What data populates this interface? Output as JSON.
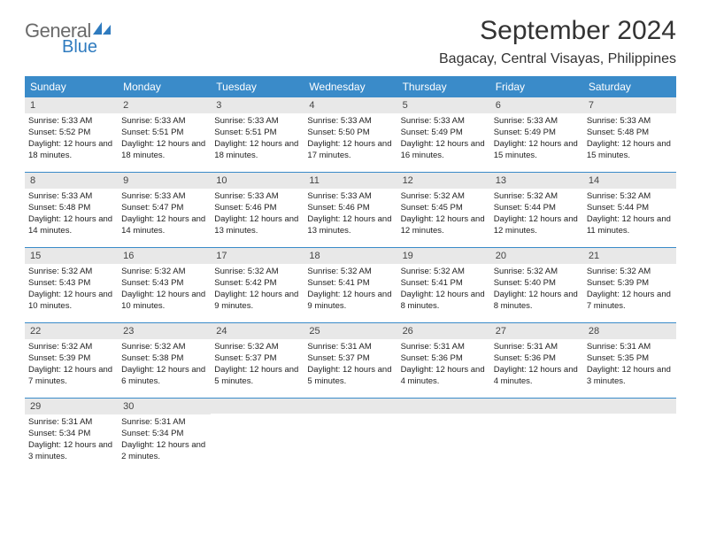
{
  "logo": {
    "text_top": "General",
    "text_bottom": "Blue",
    "gray": "#6a6a6a",
    "blue": "#2f7bbf"
  },
  "title": "September 2024",
  "location": "Bagacay, Central Visayas, Philippines",
  "colors": {
    "header_bg": "#3a8bc9",
    "header_text": "#ffffff",
    "daynum_bg": "#e8e8e8",
    "border": "#3a8bc9",
    "text": "#222222"
  },
  "day_names": [
    "Sunday",
    "Monday",
    "Tuesday",
    "Wednesday",
    "Thursday",
    "Friday",
    "Saturday"
  ],
  "weeks": [
    [
      {
        "n": "1",
        "sr": "5:33 AM",
        "ss": "5:52 PM",
        "dl": "12 hours and 18 minutes."
      },
      {
        "n": "2",
        "sr": "5:33 AM",
        "ss": "5:51 PM",
        "dl": "12 hours and 18 minutes."
      },
      {
        "n": "3",
        "sr": "5:33 AM",
        "ss": "5:51 PM",
        "dl": "12 hours and 18 minutes."
      },
      {
        "n": "4",
        "sr": "5:33 AM",
        "ss": "5:50 PM",
        "dl": "12 hours and 17 minutes."
      },
      {
        "n": "5",
        "sr": "5:33 AM",
        "ss": "5:49 PM",
        "dl": "12 hours and 16 minutes."
      },
      {
        "n": "6",
        "sr": "5:33 AM",
        "ss": "5:49 PM",
        "dl": "12 hours and 15 minutes."
      },
      {
        "n": "7",
        "sr": "5:33 AM",
        "ss": "5:48 PM",
        "dl": "12 hours and 15 minutes."
      }
    ],
    [
      {
        "n": "8",
        "sr": "5:33 AM",
        "ss": "5:48 PM",
        "dl": "12 hours and 14 minutes."
      },
      {
        "n": "9",
        "sr": "5:33 AM",
        "ss": "5:47 PM",
        "dl": "12 hours and 14 minutes."
      },
      {
        "n": "10",
        "sr": "5:33 AM",
        "ss": "5:46 PM",
        "dl": "12 hours and 13 minutes."
      },
      {
        "n": "11",
        "sr": "5:33 AM",
        "ss": "5:46 PM",
        "dl": "12 hours and 13 minutes."
      },
      {
        "n": "12",
        "sr": "5:32 AM",
        "ss": "5:45 PM",
        "dl": "12 hours and 12 minutes."
      },
      {
        "n": "13",
        "sr": "5:32 AM",
        "ss": "5:44 PM",
        "dl": "12 hours and 12 minutes."
      },
      {
        "n": "14",
        "sr": "5:32 AM",
        "ss": "5:44 PM",
        "dl": "12 hours and 11 minutes."
      }
    ],
    [
      {
        "n": "15",
        "sr": "5:32 AM",
        "ss": "5:43 PM",
        "dl": "12 hours and 10 minutes."
      },
      {
        "n": "16",
        "sr": "5:32 AM",
        "ss": "5:43 PM",
        "dl": "12 hours and 10 minutes."
      },
      {
        "n": "17",
        "sr": "5:32 AM",
        "ss": "5:42 PM",
        "dl": "12 hours and 9 minutes."
      },
      {
        "n": "18",
        "sr": "5:32 AM",
        "ss": "5:41 PM",
        "dl": "12 hours and 9 minutes."
      },
      {
        "n": "19",
        "sr": "5:32 AM",
        "ss": "5:41 PM",
        "dl": "12 hours and 8 minutes."
      },
      {
        "n": "20",
        "sr": "5:32 AM",
        "ss": "5:40 PM",
        "dl": "12 hours and 8 minutes."
      },
      {
        "n": "21",
        "sr": "5:32 AM",
        "ss": "5:39 PM",
        "dl": "12 hours and 7 minutes."
      }
    ],
    [
      {
        "n": "22",
        "sr": "5:32 AM",
        "ss": "5:39 PM",
        "dl": "12 hours and 7 minutes."
      },
      {
        "n": "23",
        "sr": "5:32 AM",
        "ss": "5:38 PM",
        "dl": "12 hours and 6 minutes."
      },
      {
        "n": "24",
        "sr": "5:32 AM",
        "ss": "5:37 PM",
        "dl": "12 hours and 5 minutes."
      },
      {
        "n": "25",
        "sr": "5:31 AM",
        "ss": "5:37 PM",
        "dl": "12 hours and 5 minutes."
      },
      {
        "n": "26",
        "sr": "5:31 AM",
        "ss": "5:36 PM",
        "dl": "12 hours and 4 minutes."
      },
      {
        "n": "27",
        "sr": "5:31 AM",
        "ss": "5:36 PM",
        "dl": "12 hours and 4 minutes."
      },
      {
        "n": "28",
        "sr": "5:31 AM",
        "ss": "5:35 PM",
        "dl": "12 hours and 3 minutes."
      }
    ],
    [
      {
        "n": "29",
        "sr": "5:31 AM",
        "ss": "5:34 PM",
        "dl": "12 hours and 3 minutes."
      },
      {
        "n": "30",
        "sr": "5:31 AM",
        "ss": "5:34 PM",
        "dl": "12 hours and 2 minutes."
      },
      null,
      null,
      null,
      null,
      null
    ]
  ],
  "labels": {
    "sunrise": "Sunrise:",
    "sunset": "Sunset:",
    "daylight": "Daylight:"
  }
}
